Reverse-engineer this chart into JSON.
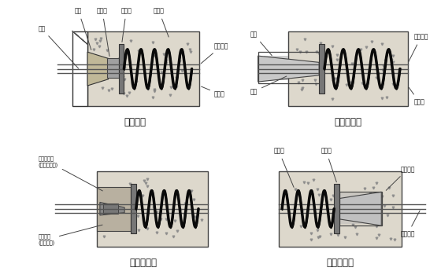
{
  "bg_color": "#ffffff",
  "concrete_color": "#ddd8cc",
  "concrete_border": "#444444",
  "spring_color": "#111111",
  "plate_color": "#888888",
  "hatch_color": "#555555",
  "line_color": "#333333",
  "label_color": "#111111",
  "panel_titles": [
    "组装状态",
    "张拉后状态",
    "防护后状态",
    "固定端大样"
  ],
  "title_fontsize": 8.5,
  "label_fontsize": 5.5
}
